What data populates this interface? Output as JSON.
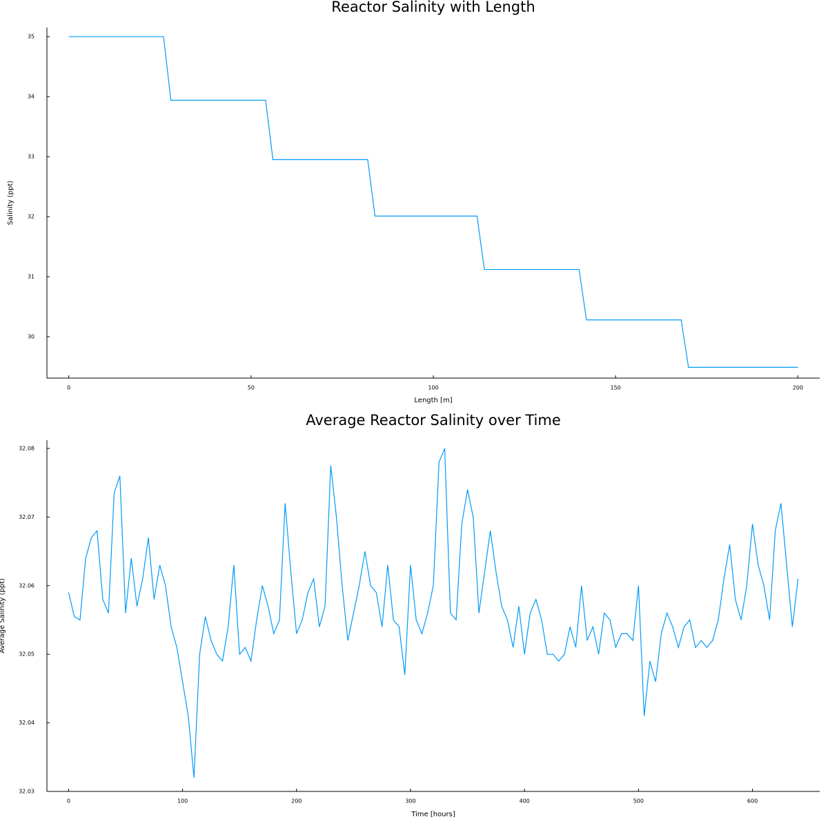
{
  "chart_data": [
    {
      "type": "line",
      "title": "Reactor Salinity with Length",
      "x_label": "Length [m]",
      "y_label": "Salinity (ppt)",
      "x": [
        0,
        26,
        28,
        54,
        56,
        82,
        84,
        112,
        114,
        140,
        142,
        168,
        170,
        200
      ],
      "values": [
        35,
        35,
        33.94,
        33.94,
        32.95,
        32.95,
        32.01,
        32.01,
        31.12,
        31.12,
        30.28,
        30.28,
        29.49,
        29.49
      ],
      "color": "#009af9",
      "xlim": [
        -6,
        206
      ],
      "ylim": [
        29.31,
        35.15
      ],
      "xticks": [
        0,
        50,
        100,
        150,
        200
      ],
      "yticks": [
        30,
        31,
        32,
        33,
        34,
        35
      ],
      "grid": false
    },
    {
      "type": "line",
      "title": "Average Reactor Salinity over Time",
      "x_label": "Time [hours]",
      "y_label": "Average Salinity (ppt)",
      "x": [
        0,
        5,
        10,
        15,
        20,
        25,
        30,
        35,
        40,
        45,
        50,
        55,
        60,
        65,
        70,
        75,
        80,
        85,
        90,
        95,
        100,
        105,
        110,
        115,
        120,
        125,
        130,
        135,
        140,
        145,
        150,
        155,
        160,
        165,
        170,
        175,
        180,
        185,
        190,
        195,
        200,
        205,
        210,
        215,
        220,
        225,
        230,
        235,
        240,
        245,
        250,
        255,
        260,
        265,
        270,
        275,
        280,
        285,
        290,
        295,
        300,
        305,
        310,
        315,
        320,
        325,
        330,
        335,
        340,
        345,
        350,
        355,
        360,
        365,
        370,
        375,
        380,
        385,
        390,
        395,
        400,
        405,
        410,
        415,
        420,
        425,
        430,
        435,
        440,
        445,
        450,
        455,
        460,
        465,
        470,
        475,
        480,
        485,
        490,
        495,
        500,
        505,
        510,
        515,
        520,
        525,
        530,
        535,
        540,
        545,
        550,
        555,
        560,
        565,
        570,
        575,
        580,
        585,
        590,
        595,
        600,
        605,
        610,
        615,
        620,
        625,
        630,
        635,
        640
      ],
      "values": [
        32.059,
        32.0555,
        32.055,
        32.064,
        32.067,
        32.068,
        32.058,
        32.056,
        32.0735,
        32.076,
        32.056,
        32.064,
        32.057,
        32.061,
        32.067,
        32.058,
        32.063,
        32.06,
        32.054,
        32.051,
        32.046,
        32.041,
        32.032,
        32.05,
        32.0555,
        32.052,
        32.05,
        32.049,
        32.054,
        32.063,
        32.05,
        32.051,
        32.049,
        32.055,
        32.06,
        32.057,
        32.053,
        32.055,
        32.072,
        32.062,
        32.053,
        32.055,
        32.059,
        32.061,
        32.054,
        32.057,
        32.0775,
        32.07,
        32.06,
        32.052,
        32.056,
        32.06,
        32.065,
        32.06,
        32.059,
        32.054,
        32.063,
        32.055,
        32.054,
        32.047,
        32.063,
        32.055,
        32.053,
        32.056,
        32.06,
        32.078,
        32.08,
        32.056,
        32.055,
        32.069,
        32.074,
        32.07,
        32.056,
        32.062,
        32.068,
        32.062,
        32.057,
        32.055,
        32.051,
        32.057,
        32.05,
        32.056,
        32.058,
        32.055,
        32.05,
        32.05,
        32.049,
        32.05,
        32.054,
        32.051,
        32.06,
        32.052,
        32.054,
        32.05,
        32.056,
        32.055,
        32.051,
        32.053,
        32.053,
        32.052,
        32.06,
        32.041,
        32.049,
        32.046,
        32.053,
        32.056,
        32.054,
        32.051,
        32.054,
        32.055,
        32.051,
        32.052,
        32.051,
        32.052,
        32.055,
        32.061,
        32.066,
        32.058,
        32.055,
        32.06,
        32.069,
        32.063,
        32.06,
        32.055,
        32.068,
        32.072,
        32.063,
        32.054,
        32.061
      ],
      "color": "#009af9",
      "xlim": [
        -19,
        659
      ],
      "ylim": [
        32.03,
        32.0812
      ],
      "xticks": [
        0,
        100,
        200,
        300,
        400,
        500,
        600
      ],
      "yticks": [
        32.03,
        32.04,
        32.05,
        32.06,
        32.07,
        32.08
      ],
      "grid": false
    }
  ]
}
